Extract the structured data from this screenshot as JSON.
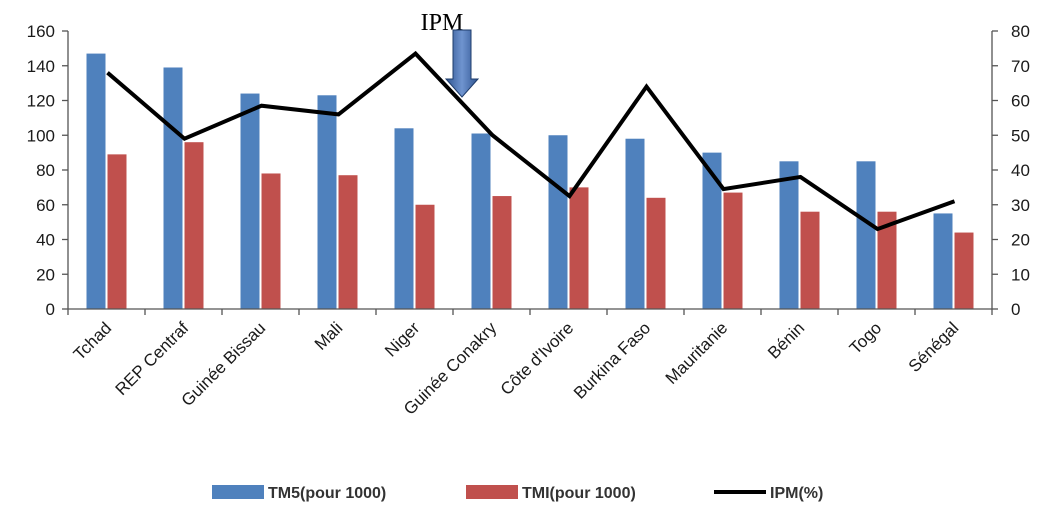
{
  "chart_data": {
    "type": "bar",
    "categories": [
      "Tchad",
      "REP Centraf",
      "Guinée Bissau",
      "Mali",
      "Niger",
      "Guinée Conakry",
      "Côte d'Ivoire",
      "Burkina Faso",
      "Mauritanie",
      "Bénin",
      "Togo",
      "Sénégal"
    ],
    "series": [
      {
        "name": "TM5(pour 1000)",
        "type": "bar",
        "axis": "left",
        "color": "#4f81bd",
        "values": [
          147,
          139,
          124,
          123,
          104,
          101,
          100,
          98,
          90,
          85,
          85,
          55
        ]
      },
      {
        "name": "TMI(pour 1000)",
        "type": "bar",
        "axis": "left",
        "color": "#c0504d",
        "values": [
          89,
          96,
          78,
          77,
          60,
          65,
          70,
          64,
          67,
          56,
          56,
          44
        ]
      },
      {
        "name": "IPM(%)",
        "type": "line",
        "axis": "right",
        "color": "#000000",
        "values": [
          68,
          49,
          58.5,
          56,
          73.5,
          50,
          32.5,
          64,
          34.5,
          38,
          23,
          31
        ]
      }
    ],
    "y_left": {
      "min": 0,
      "max": 160,
      "ticks": [
        "0",
        "20",
        "40",
        "60",
        "80",
        "100",
        "120",
        "140",
        "160"
      ]
    },
    "y_right": {
      "min": 0,
      "max": 80,
      "ticks": [
        "0",
        "10",
        "20",
        "30",
        "40",
        "50",
        "60",
        "70",
        "80"
      ]
    },
    "annotation": {
      "text": "IPM",
      "category": "Guinée Conakry"
    },
    "legend_position": "bottom",
    "grid": false
  }
}
